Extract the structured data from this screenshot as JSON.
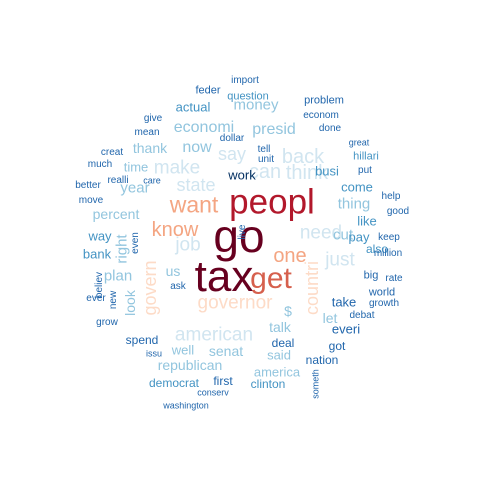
{
  "colors": {
    "maroon": "#67001f",
    "crimson": "#b2182b",
    "red": "#d6604d",
    "salmon": "#f4a582",
    "peach": "#fddbc7",
    "pale_blue": "#d1e5f0",
    "light_blue": "#92c5de",
    "mid_blue": "#4393c3",
    "dark_blue": "#2166ac",
    "navy": "#053061"
  },
  "words": [
    {
      "text": "tax",
      "color": "maroon",
      "rank": 1
    },
    {
      "text": "go",
      "color": "maroon",
      "rank": 1
    },
    {
      "text": "peopl",
      "color": "crimson",
      "rank": 2
    },
    {
      "text": "get",
      "color": "red",
      "rank": 3
    },
    {
      "text": "want",
      "color": "salmon",
      "rank": 4
    },
    {
      "text": "know",
      "color": "salmon",
      "rank": 4
    },
    {
      "text": "one",
      "color": "salmon",
      "rank": 4
    },
    {
      "text": "governor",
      "color": "peach",
      "rank": 5
    },
    {
      "text": "govern",
      "color": "peach",
      "rank": 5
    },
    {
      "text": "countri",
      "color": "peach",
      "rank": 5
    },
    {
      "text": "think",
      "color": "pale_blue",
      "rank": 5
    },
    {
      "text": "can",
      "color": "pale_blue",
      "rank": 5
    },
    {
      "text": "back",
      "color": "pale_blue",
      "rank": 5
    },
    {
      "text": "make",
      "color": "pale_blue",
      "rank": 5
    },
    {
      "text": "need",
      "color": "pale_blue",
      "rank": 5
    },
    {
      "text": "american",
      "color": "pale_blue",
      "rank": 5
    },
    {
      "text": "just",
      "color": "pale_blue",
      "rank": 5
    },
    {
      "text": "say",
      "color": "pale_blue",
      "rank": 5
    },
    {
      "text": "state",
      "color": "pale_blue",
      "rank": 5
    },
    {
      "text": "job",
      "color": "pale_blue",
      "rank": 5
    },
    {
      "text": "presid",
      "color": "light_blue",
      "rank": 6
    },
    {
      "text": "economi",
      "color": "light_blue",
      "rank": 6
    },
    {
      "text": "money",
      "color": "light_blue",
      "rank": 6
    },
    {
      "text": "thank",
      "color": "light_blue",
      "rank": 6
    },
    {
      "text": "now",
      "color": "light_blue",
      "rank": 6
    },
    {
      "text": "year",
      "color": "light_blue",
      "rank": 6
    },
    {
      "text": "percent",
      "color": "light_blue",
      "rank": 6
    },
    {
      "text": "thing",
      "color": "light_blue",
      "rank": 6
    },
    {
      "text": "right",
      "color": "light_blue",
      "rank": 6
    },
    {
      "text": "plan",
      "color": "light_blue",
      "rank": 6
    },
    {
      "text": "cut",
      "color": "light_blue",
      "rank": 6
    },
    {
      "text": "us",
      "color": "light_blue",
      "rank": 6
    },
    {
      "text": "look",
      "color": "light_blue",
      "rank": 6
    },
    {
      "text": "talk",
      "color": "light_blue",
      "rank": 6
    },
    {
      "text": "$",
      "color": "light_blue",
      "rank": 6
    },
    {
      "text": "let",
      "color": "light_blue",
      "rank": 6
    },
    {
      "text": "republican",
      "color": "light_blue",
      "rank": 6
    },
    {
      "text": "senat",
      "color": "light_blue",
      "rank": 6
    },
    {
      "text": "well",
      "color": "light_blue",
      "rank": 6
    },
    {
      "text": "said",
      "color": "light_blue",
      "rank": 6
    },
    {
      "text": "america",
      "color": "light_blue",
      "rank": 6
    },
    {
      "text": "time",
      "color": "light_blue",
      "rank": 6
    },
    {
      "text": "actual",
      "color": "mid_blue",
      "rank": 7
    },
    {
      "text": "question",
      "color": "mid_blue",
      "rank": 7
    },
    {
      "text": "work",
      "color": "navy",
      "rank": 7
    },
    {
      "text": "busi",
      "color": "mid_blue",
      "rank": 7
    },
    {
      "text": "come",
      "color": "mid_blue",
      "rank": 7
    },
    {
      "text": "like",
      "color": "mid_blue",
      "rank": 7
    },
    {
      "text": "pay",
      "color": "mid_blue",
      "rank": 7
    },
    {
      "text": "also",
      "color": "mid_blue",
      "rank": 7
    },
    {
      "text": "take",
      "color": "dark_blue",
      "rank": 7
    },
    {
      "text": "everi",
      "color": "dark_blue",
      "rank": 7
    },
    {
      "text": "got",
      "color": "dark_blue",
      "rank": 7
    },
    {
      "text": "deal",
      "color": "dark_blue",
      "rank": 7
    },
    {
      "text": "nation",
      "color": "dark_blue",
      "rank": 7
    },
    {
      "text": "clinton",
      "color": "mid_blue",
      "rank": 7
    },
    {
      "text": "spend",
      "color": "dark_blue",
      "rank": 7
    },
    {
      "text": "first",
      "color": "dark_blue",
      "rank": 7
    },
    {
      "text": "democrat",
      "color": "mid_blue",
      "rank": 7
    },
    {
      "text": "way",
      "color": "mid_blue",
      "rank": 7
    },
    {
      "text": "bank",
      "color": "mid_blue",
      "rank": 7
    },
    {
      "text": "feder",
      "color": "dark_blue",
      "rank": 8
    },
    {
      "text": "import",
      "color": "dark_blue",
      "rank": 8
    },
    {
      "text": "problem",
      "color": "dark_blue",
      "rank": 8
    },
    {
      "text": "econom",
      "color": "dark_blue",
      "rank": 8
    },
    {
      "text": "give",
      "color": "dark_blue",
      "rank": 8
    },
    {
      "text": "mean",
      "color": "dark_blue",
      "rank": 8
    },
    {
      "text": "dollar",
      "color": "dark_blue",
      "rank": 8
    },
    {
      "text": "tell",
      "color": "dark_blue",
      "rank": 8
    },
    {
      "text": "unit",
      "color": "dark_blue",
      "rank": 8
    },
    {
      "text": "done",
      "color": "dark_blue",
      "rank": 8
    },
    {
      "text": "great",
      "color": "dark_blue",
      "rank": 8
    },
    {
      "text": "hillari",
      "color": "mid_blue",
      "rank": 8
    },
    {
      "text": "put",
      "color": "dark_blue",
      "rank": 8
    },
    {
      "text": "creat",
      "color": "dark_blue",
      "rank": 8
    },
    {
      "text": "much",
      "color": "dark_blue",
      "rank": 8
    },
    {
      "text": "care",
      "color": "dark_blue",
      "rank": 8
    },
    {
      "text": "realli",
      "color": "dark_blue",
      "rank": 8
    },
    {
      "text": "better",
      "color": "dark_blue",
      "rank": 8
    },
    {
      "text": "move",
      "color": "dark_blue",
      "rank": 8
    },
    {
      "text": "help",
      "color": "dark_blue",
      "rank": 8
    },
    {
      "text": "good",
      "color": "dark_blue",
      "rank": 8
    },
    {
      "text": "keep",
      "color": "dark_blue",
      "rank": 8
    },
    {
      "text": "million",
      "color": "dark_blue",
      "rank": 8
    },
    {
      "text": "world",
      "color": "dark_blue",
      "rank": 8
    },
    {
      "text": "big",
      "color": "dark_blue",
      "rank": 8
    },
    {
      "text": "rate",
      "color": "dark_blue",
      "rank": 8
    },
    {
      "text": "growth",
      "color": "dark_blue",
      "rank": 8
    },
    {
      "text": "debat",
      "color": "dark_blue",
      "rank": 8
    },
    {
      "text": "live",
      "color": "dark_blue",
      "rank": 8
    },
    {
      "text": "ask",
      "color": "dark_blue",
      "rank": 8
    },
    {
      "text": "believ",
      "color": "dark_blue",
      "rank": 8
    },
    {
      "text": "even",
      "color": "dark_blue",
      "rank": 8
    },
    {
      "text": "ever",
      "color": "dark_blue",
      "rank": 8
    },
    {
      "text": "new",
      "color": "dark_blue",
      "rank": 8
    },
    {
      "text": "grow",
      "color": "dark_blue",
      "rank": 8
    },
    {
      "text": "issu",
      "color": "dark_blue",
      "rank": 8
    },
    {
      "text": "conserv",
      "color": "dark_blue",
      "rank": 8
    },
    {
      "text": "washington",
      "color": "dark_blue",
      "rank": 8
    },
    {
      "text": "someth",
      "color": "dark_blue",
      "rank": 8
    }
  ]
}
